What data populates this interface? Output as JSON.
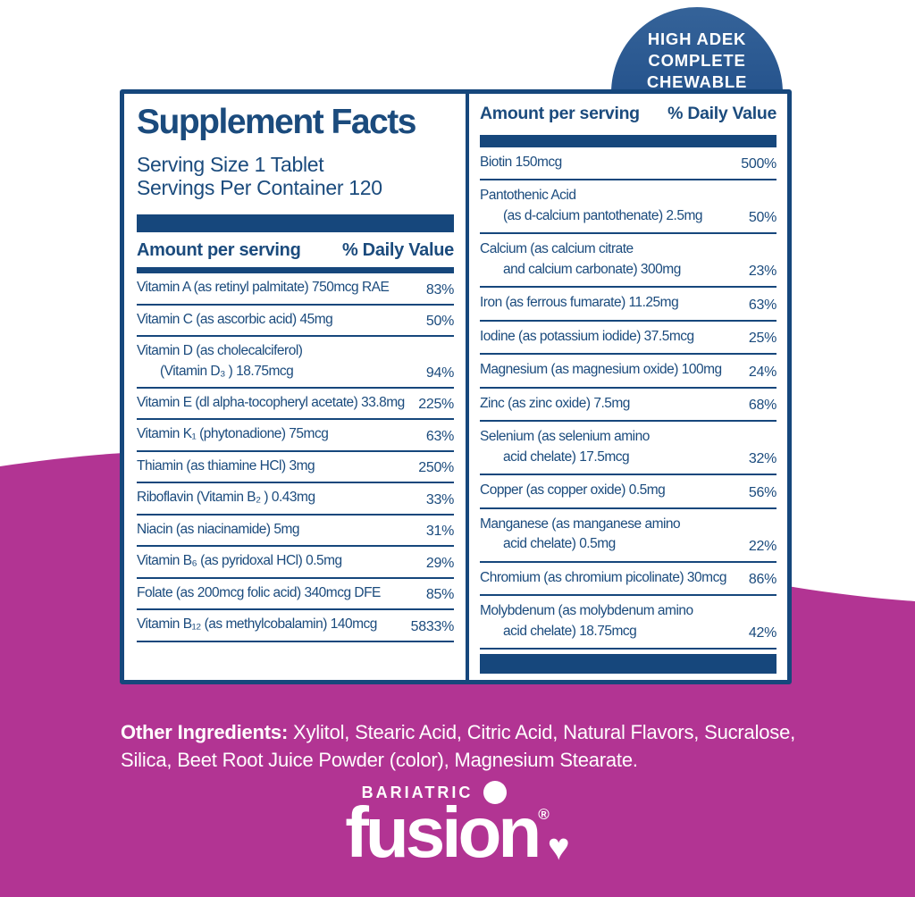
{
  "colors": {
    "navy": "#16477c",
    "magenta": "#b23493",
    "badge_blue_top": "#356399",
    "badge_blue_bottom": "#1d4b80",
    "white": "#ffffff"
  },
  "badge": {
    "lines": [
      "HIGH ADEK",
      "COMPLETE",
      "CHEWABLE"
    ]
  },
  "supplement_facts": {
    "title": "Supplement Facts",
    "serving_size": "Serving Size 1 Tablet",
    "servings_per_container": "Servings Per Container 120",
    "column_headers": {
      "amount": "Amount per serving",
      "daily_value": "% Daily Value"
    },
    "left_rows": [
      {
        "name": "Vitamin A (as retinyl palmitate) 750mcg RAE",
        "value": "83%"
      },
      {
        "name": "Vitamin C (as ascorbic acid) 45mg",
        "value": "50%"
      },
      {
        "name": "Vitamin D (as cholecalciferol)",
        "name2": "(Vitamin D₃ ) 18.75mcg",
        "value": "94%"
      },
      {
        "name": "Vitamin E (dl alpha-tocopheryl acetate) 33.8mg",
        "value": "225%"
      },
      {
        "name": "Vitamin K₁ (phytonadione) 75mcg",
        "value": "63%"
      },
      {
        "name": "Thiamin (as thiamine HCl) 3mg",
        "value": "250%"
      },
      {
        "name": "Riboflavin (Vitamin B₂ ) 0.43mg",
        "value": "33%"
      },
      {
        "name": "Niacin (as niacinamide) 5mg",
        "value": "31%"
      },
      {
        "name": "Vitamin B₆ (as pyridoxal HCl) 0.5mg",
        "value": "29%"
      },
      {
        "name": "Folate (as 200mcg folic acid) 340mcg DFE",
        "value": "85%"
      },
      {
        "name": "Vitamin B₁₂ (as methylcobalamin) 140mcg",
        "value": "5833%"
      }
    ],
    "right_rows": [
      {
        "name": "Biotin 150mcg",
        "value": "500%"
      },
      {
        "name": "Pantothenic Acid",
        "name2": "(as d-calcium pantothenate) 2.5mg",
        "value": "50%"
      },
      {
        "name": "Calcium (as calcium citrate",
        "name2": "and calcium carbonate) 300mg",
        "value": "23%"
      },
      {
        "name": "Iron (as ferrous fumarate) 11.25mg",
        "value": "63%"
      },
      {
        "name": "Iodine (as potassium iodide) 37.5mcg",
        "value": "25%"
      },
      {
        "name": "Magnesium (as magnesium oxide) 100mg",
        "value": "24%"
      },
      {
        "name": "Zinc (as zinc oxide) 7.5mg",
        "value": "68%"
      },
      {
        "name": "Selenium (as selenium amino",
        "name2": "acid chelate) 17.5mcg",
        "value": "32%"
      },
      {
        "name": "Copper (as copper oxide) 0.5mg",
        "value": "56%"
      },
      {
        "name": "Manganese (as manganese amino",
        "name2": "acid chelate) 0.5mg",
        "value": "22%"
      },
      {
        "name": "Chromium (as chromium picolinate) 30mcg",
        "value": "86%"
      },
      {
        "name": "Molybdenum (as molybdenum amino",
        "name2": "acid chelate) 18.75mcg",
        "value": "42%"
      }
    ]
  },
  "other_ingredients": {
    "label": "Other Ingredients:",
    "text": " Xylitol, Stearic Acid, Citric Acid, Natural Flavors, Sucralose, Silica, Beet Root Juice Powder (color), Magnesium Stearate."
  },
  "logo": {
    "brand_top": "BARIATRIC",
    "brand_name": "fusion",
    "registered": "®",
    "heart": "♥"
  }
}
